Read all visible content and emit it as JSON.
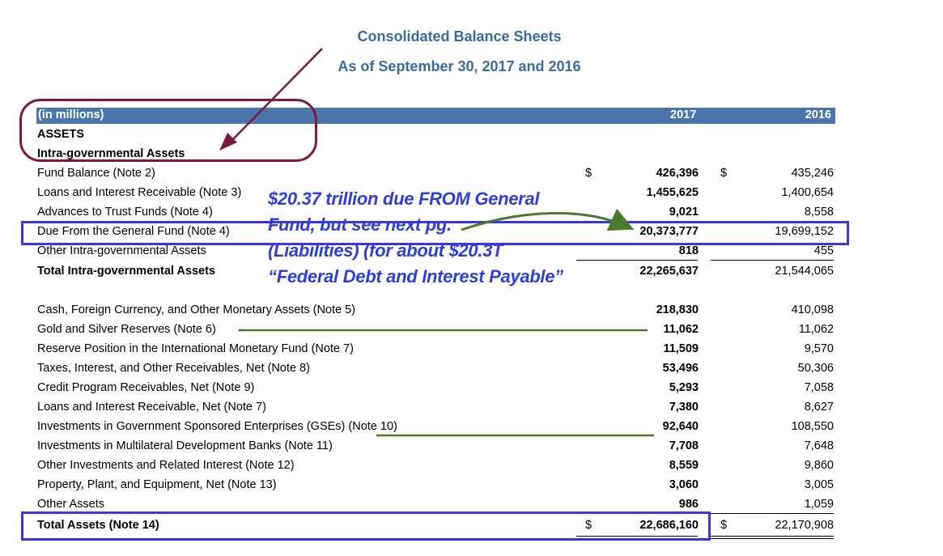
{
  "title": "Consolidated Balance Sheets",
  "subtitle": "As of September 30, 2017 and 2016",
  "header": {
    "units": "(in millions)",
    "col1": "2017",
    "col2": "2016"
  },
  "sections": {
    "assets": "ASSETS",
    "intra": "Intra-governmental Assets"
  },
  "currency": "$",
  "rows": [
    {
      "label": "Fund Balance (Note 2)",
      "v2017": "426,396",
      "v2016": "435,246"
    },
    {
      "label": "Loans and Interest Receivable (Note 3)",
      "v2017": "1,455,625",
      "v2016": "1,400,654"
    },
    {
      "label": "Advances to Trust Funds (Note 4)",
      "v2017": "9,021",
      "v2016": "8,558"
    },
    {
      "label": "Due From the General Fund (Note 4)",
      "v2017": "20,373,777",
      "v2016": "19,699,152"
    },
    {
      "label": "Other Intra-governmental Assets",
      "v2017": "818",
      "v2016": "455"
    },
    {
      "label": "Total Intra-governmental Assets",
      "v2017": "22,265,637",
      "v2016": "21,544,065"
    },
    {
      "label": "Cash, Foreign Currency, and Other Monetary Assets (Note 5)",
      "v2017": "218,830",
      "v2016": "410,098"
    },
    {
      "label": "Gold and Silver Reserves (Note 6)",
      "v2017": "11,062",
      "v2016": "11,062"
    },
    {
      "label": "Reserve Position in the International Monetary Fund (Note 7)",
      "v2017": "11,509",
      "v2016": "9,570"
    },
    {
      "label": "Taxes, Interest, and Other Receivables, Net (Note 8)",
      "v2017": "53,496",
      "v2016": "50,306"
    },
    {
      "label": "Credit Program Receivables, Net (Note 9)",
      "v2017": "5,293",
      "v2016": "7,058"
    },
    {
      "label": "Loans and Interest Receivable, Net (Note 7)",
      "v2017": "7,380",
      "v2016": "8,627"
    },
    {
      "label": "Investments in Government Sponsored Enterprises (GSEs) (Note 10)",
      "v2017": "92,640",
      "v2016": "108,550"
    },
    {
      "label": "Investments in Multilateral Development Banks (Note 11)",
      "v2017": "7,708",
      "v2016": "7,648"
    },
    {
      "label": "Other Investments and Related Interest (Note 12)",
      "v2017": "8,559",
      "v2016": "9,860"
    },
    {
      "label": "Property, Plant, and Equipment, Net (Note 13)",
      "v2017": "3,060",
      "v2016": "3,005"
    },
    {
      "label": "Other Assets",
      "v2017": "986",
      "v2016": "1,059"
    },
    {
      "label": "Total Assets (Note 14)",
      "v2017": "22,686,160",
      "v2016": "22,170,908"
    }
  ],
  "annotation": {
    "line1": "$20.37 trillion due FROM General",
    "line2": "Fund, but see next pg.",
    "line3": "(Liabilities) (for about $20.3T",
    "line4": "“Federal Debt and Interest Payable”"
  },
  "colors": {
    "header_bg": "#4a76ad",
    "title": "#3a6aa6",
    "annotation": "#2d3fd6",
    "highlight_box": "#3b37e0",
    "oval": "#7a1c35",
    "arrow_green": "#4a7a2e"
  }
}
